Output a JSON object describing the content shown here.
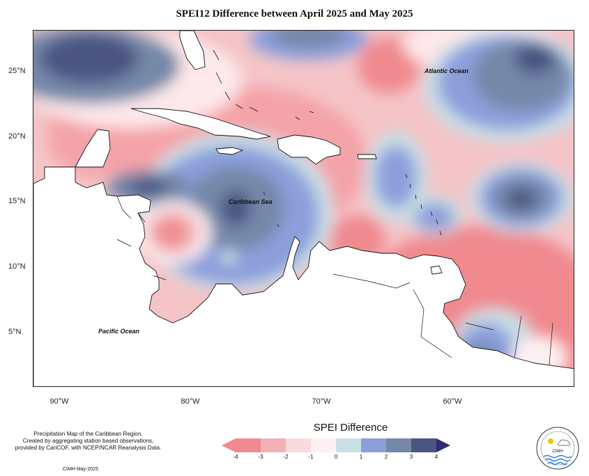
{
  "title": "SPEI12 Difference between April 2025 and May 2025",
  "map": {
    "lon_labels": [
      "90°W",
      "80°W",
      "70°W",
      "60°W"
    ],
    "lat_labels": [
      "25°N",
      "20°N",
      "15°N",
      "10°N",
      "5°N"
    ],
    "ocean_labels": {
      "atlantic": "Atlantic Ocean",
      "caribbean": "Caribbean Sea",
      "pacific": "Pacific Ocean"
    }
  },
  "legend": {
    "title": "SPEI Difference",
    "ticks": [
      "-4",
      "-3",
      "-2",
      "-1",
      "0",
      "1",
      "2",
      "3",
      "4"
    ],
    "colors": [
      "#f08a8f",
      "#f2b2b5",
      "#f9dade",
      "#fdf0f2",
      "#c9e0e6",
      "#8b9fdb",
      "#7488a8",
      "#4b5582",
      "#2e2d70"
    ]
  },
  "footnote": {
    "line1": "Precipitation Map of the Caribbean Region.",
    "line2": "Created by aggregating station based observations,",
    "line3": "provided by CariCOF, with NCEP/NCAR Reanalysis Data."
  },
  "credit": "CIMH May-2025",
  "logo": {
    "text": "CIMH"
  }
}
